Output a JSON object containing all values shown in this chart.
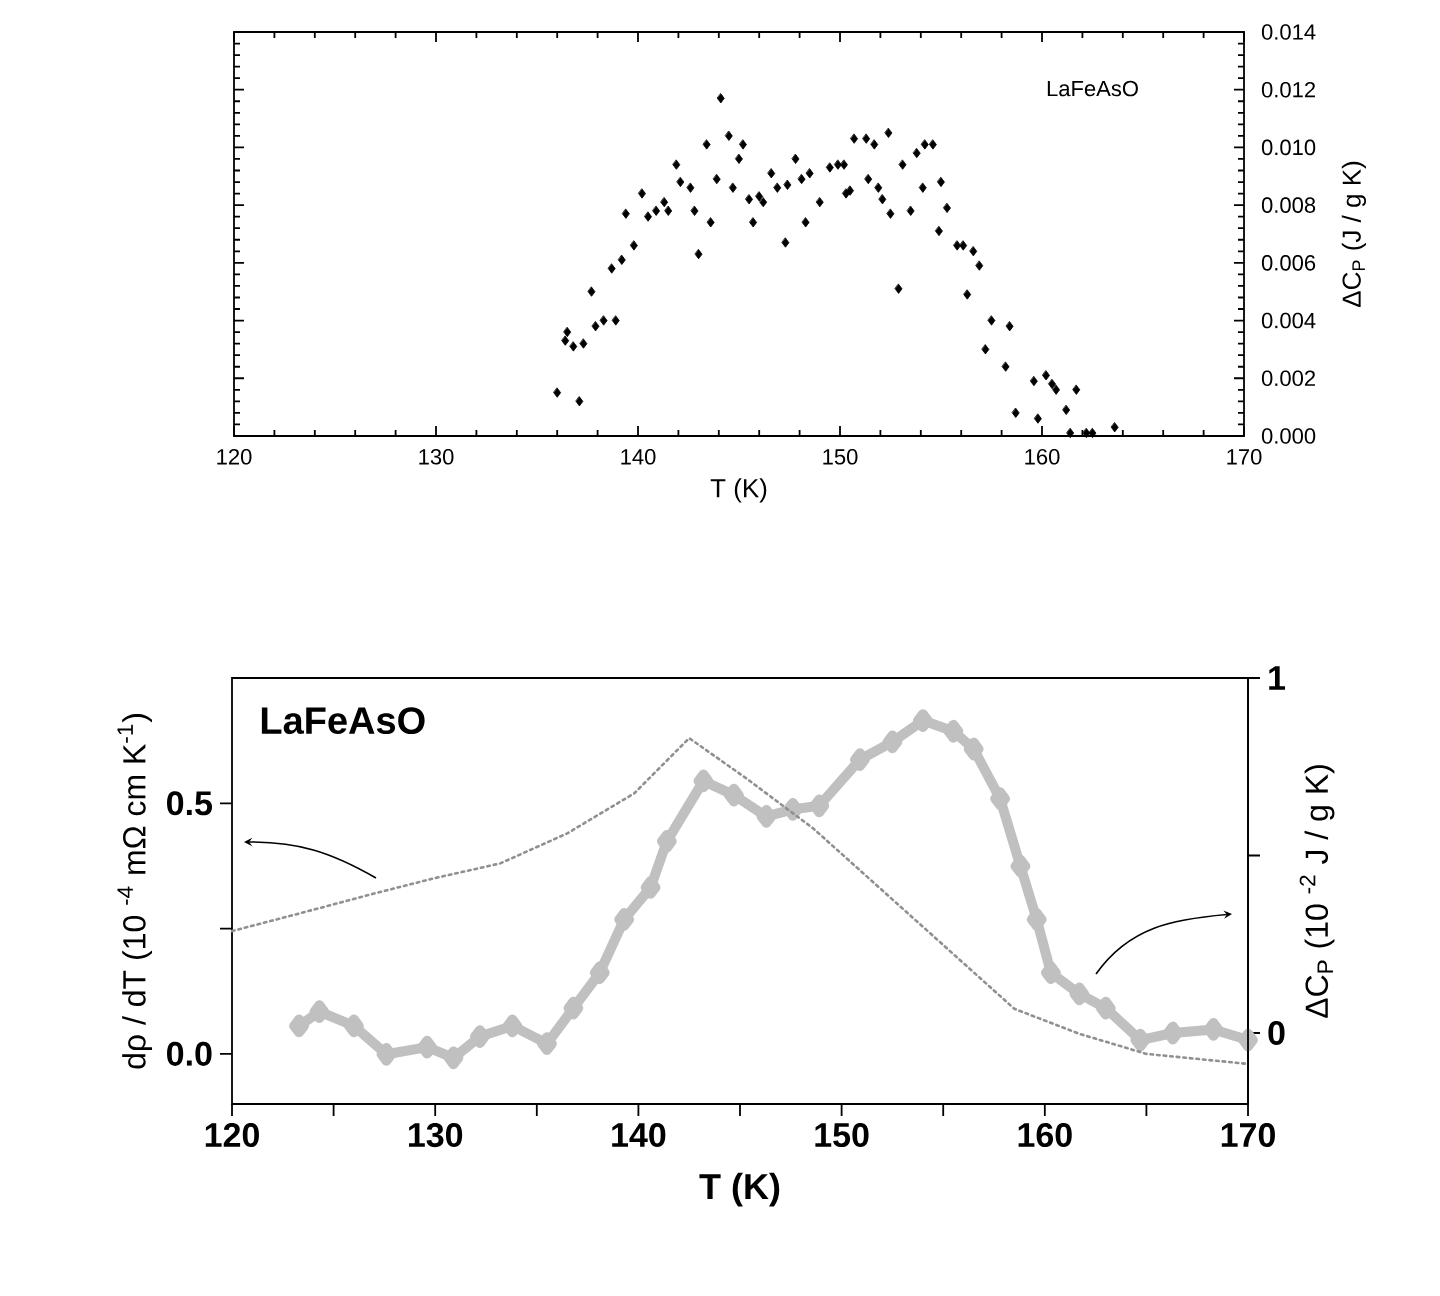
{
  "chart_data": [
    {
      "type": "scatter",
      "xlabel": "T (K)",
      "ylabel": "ΔC$_{P}$ (J / g K)",
      "annotations": [
        "LaFeAsO"
      ],
      "color": "#000000",
      "marker": "diamond",
      "xlim": [
        120,
        170
      ],
      "xticks": [
        120,
        130,
        140,
        150,
        160,
        170
      ],
      "ylim": [
        0,
        0.014
      ],
      "yticks": [
        {
          "value": 0,
          "label": "0.000"
        },
        {
          "value": 0.002,
          "label": "0.002"
        },
        {
          "value": 0.004,
          "label": "0.004"
        },
        {
          "value": 0.006,
          "label": "0.006"
        },
        {
          "value": 0.008,
          "label": "0.008"
        },
        {
          "value": 0.01,
          "label": "0.010"
        },
        {
          "value": 0.012,
          "label": "0.012"
        },
        {
          "value": 0.014,
          "label": "0.014"
        }
      ],
      "x": [
        136.0,
        137.1,
        136.4,
        136.5,
        136.8,
        137.3,
        137.7,
        137.9,
        138.3,
        138.9,
        138.7,
        139.2,
        139.4,
        139.8,
        140.2,
        140.5,
        140.9,
        141.3,
        141.5,
        141.9,
        142.1,
        142.6,
        142.8,
        143.0,
        143.4,
        143.6,
        143.9,
        144.1,
        144.5,
        144.7,
        145.0,
        145.2,
        145.5,
        145.7,
        146.0,
        146.2,
        146.6,
        146.9,
        147.3,
        147.4,
        147.8,
        148.1,
        148.3,
        148.5,
        149.0,
        149.5,
        149.9,
        150.2,
        150.3,
        150.5,
        150.7,
        151.3,
        151.7,
        151.4,
        151.9,
        152.1,
        152.5,
        152.4,
        152.9,
        153.1,
        153.5,
        153.8,
        154.1,
        154.2,
        154.6,
        154.9,
        155.0,
        155.3,
        155.8,
        156.1,
        156.3,
        156.6,
        156.9,
        157.2,
        157.5,
        158.2,
        158.4,
        158.7,
        159.6,
        159.8,
        160.2,
        160.5,
        160.7,
        161.2,
        161.4,
        161.7,
        162.2,
        162.5,
        163.6
      ],
      "values": [
        0.0015,
        0.0012,
        0.0033,
        0.0036,
        0.0031,
        0.0032,
        0.005,
        0.0038,
        0.004,
        0.004,
        0.0058,
        0.0061,
        0.0077,
        0.0066,
        0.0084,
        0.0076,
        0.0078,
        0.0081,
        0.0078,
        0.0094,
        0.0088,
        0.0086,
        0.0078,
        0.0063,
        0.0101,
        0.0074,
        0.0089,
        0.0117,
        0.0104,
        0.0086,
        0.0096,
        0.0101,
        0.0082,
        0.0074,
        0.0083,
        0.0081,
        0.0091,
        0.0086,
        0.0067,
        0.0087,
        0.0096,
        0.0089,
        0.0074,
        0.0091,
        0.0081,
        0.0093,
        0.0094,
        0.0094,
        0.0084,
        0.0085,
        0.0103,
        0.0103,
        0.0101,
        0.0089,
        0.0086,
        0.0082,
        0.0077,
        0.0105,
        0.0051,
        0.0094,
        0.0078,
        0.0098,
        0.0086,
        0.0101,
        0.0101,
        0.0071,
        0.0088,
        0.0079,
        0.0066,
        0.0066,
        0.0049,
        0.0064,
        0.0059,
        0.003,
        0.004,
        0.0024,
        0.0038,
        0.0008,
        0.0019,
        0.0006,
        0.0021,
        0.0018,
        0.0016,
        0.0009,
        0.0001,
        0.0016,
        0.0001,
        0.0001,
        0.0003
      ]
    },
    {
      "type": "line",
      "xlabel": "T (K)",
      "ylabel": "dρ / dT (10 $^{-4}$ mΩ cm K$^{-1}$)",
      "y2label": "ΔC$_{P}$ (10 $^{-2}$ J / g K)",
      "annotations": [
        "LaFeAsO"
      ],
      "xlim": [
        120,
        170
      ],
      "xticks": [
        120,
        {
          "value": 125,
          "label": null
        },
        130,
        {
          "value": 135,
          "label": null
        },
        140,
        {
          "value": 145,
          "label": null
        },
        150,
        {
          "value": 155,
          "label": null
        },
        160,
        {
          "value": 165,
          "label": null
        },
        170
      ],
      "ylim": [
        -0.1,
        0.75
      ],
      "yticks": [
        {
          "value": 0,
          "label": "0.0"
        },
        {
          "value": 0.25,
          "label": null
        },
        {
          "value": 0.5,
          "label": "0.5"
        }
      ],
      "y2lim": [
        -0.2,
        1
      ],
      "y2ticks": [
        0,
        {
          "value": 0.5,
          "label": null
        },
        1
      ],
      "series": [
        {
          "axis": "y2",
          "color": "#c0c0c0",
          "marker": "diamond",
          "line_style": "solid",
          "x": [
            123.3,
            124.3,
            126.0,
            127.6,
            129.6,
            130.9,
            132.2,
            133.8,
            135.5,
            136.8,
            138.1,
            139.3,
            140.6,
            141.4,
            143.2,
            144.7,
            146.3,
            147.6,
            148.9,
            150.9,
            152.5,
            154.0,
            155.5,
            156.5,
            157.8,
            158.8,
            159.6,
            160.3,
            161.7,
            163.0,
            164.7,
            166.3,
            168.3,
            170.0
          ],
          "values": [
            0.02,
            0.06,
            0.02,
            -0.06,
            -0.04,
            -0.07,
            -0.01,
            0.02,
            -0.03,
            0.07,
            0.17,
            0.32,
            0.41,
            0.54,
            0.71,
            0.67,
            0.61,
            0.63,
            0.64,
            0.77,
            0.82,
            0.88,
            0.85,
            0.8,
            0.66,
            0.47,
            0.32,
            0.17,
            0.11,
            0.07,
            -0.02,
            0.0,
            0.01,
            -0.02
          ]
        },
        {
          "axis": "y",
          "color": "#909090",
          "marker": "none",
          "line_style": "dotted",
          "x": [
            120.0,
            123.3,
            127.0,
            129.9,
            133.2,
            136.5,
            139.8,
            142.5,
            145.3,
            148.6,
            151.9,
            155.2,
            158.5,
            161.7,
            165.0,
            170.0
          ],
          "values": [
            0.245,
            0.28,
            0.32,
            0.35,
            0.38,
            0.44,
            0.52,
            0.63,
            0.55,
            0.45,
            0.33,
            0.21,
            0.09,
            0.04,
            0.0,
            -0.02
          ]
        }
      ]
    }
  ]
}
